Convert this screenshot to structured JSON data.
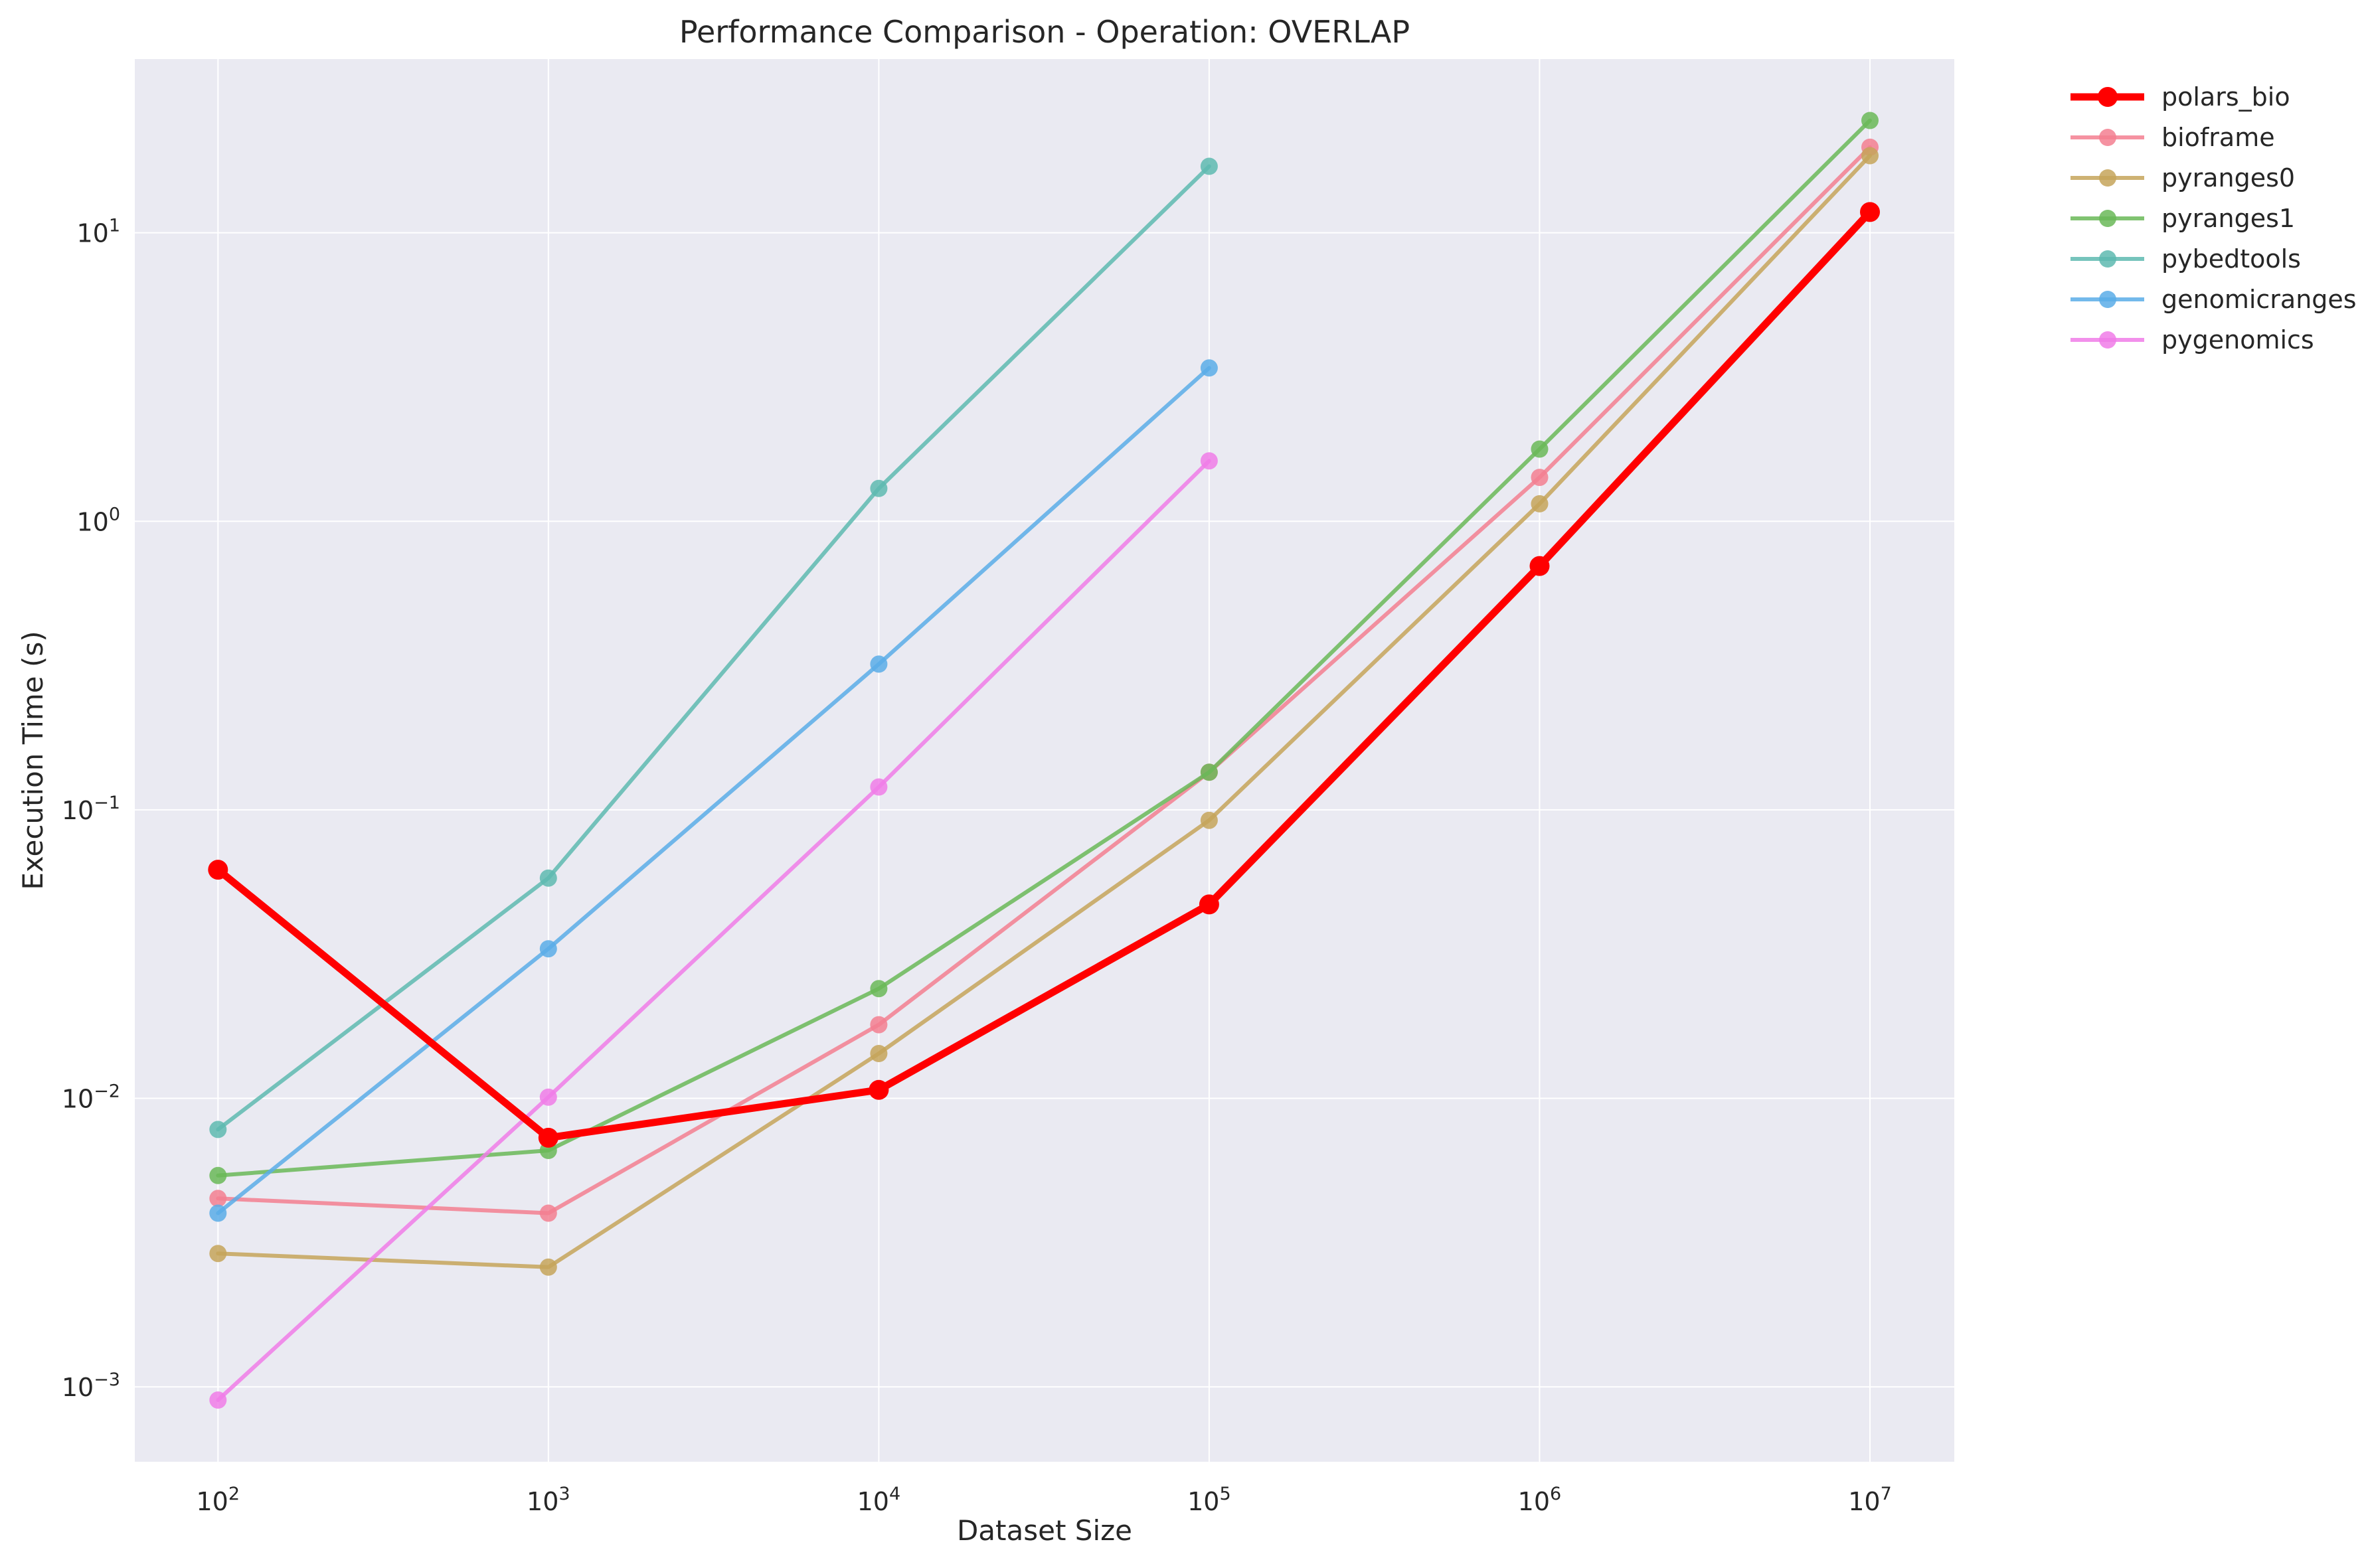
{
  "chart_data": {
    "type": "line",
    "title": "Performance Comparison - Operation: OVERLAP",
    "xlabel": "Dataset Size",
    "ylabel": "Execution Time (s)",
    "x_scale": "log",
    "y_scale": "log",
    "x": [
      100,
      1000,
      10000,
      100000,
      1000000,
      10000000
    ],
    "xlim": [
      56,
      18000000
    ],
    "ylim": [
      0.00055,
      40
    ],
    "x_ticks": [
      {
        "base": "10",
        "exp": "2",
        "value": 100
      },
      {
        "base": "10",
        "exp": "3",
        "value": 1000
      },
      {
        "base": "10",
        "exp": "4",
        "value": 10000
      },
      {
        "base": "10",
        "exp": "5",
        "value": 100000
      },
      {
        "base": "10",
        "exp": "6",
        "value": 1000000
      },
      {
        "base": "10",
        "exp": "7",
        "value": 10000000
      }
    ],
    "y_ticks": [
      {
        "base": "10",
        "exp": "−3",
        "value": 0.001
      },
      {
        "base": "10",
        "exp": "−2",
        "value": 0.01
      },
      {
        "base": "10",
        "exp": "−1",
        "value": 0.1
      },
      {
        "base": "10",
        "exp": "0",
        "value": 1
      },
      {
        "base": "10",
        "exp": "1",
        "value": 10
      }
    ],
    "grid": true,
    "legend_position": "outside-right",
    "background_color": "#EAEAF2",
    "series": [
      {
        "name": "polars_bio",
        "color": "#FF0000",
        "emphasis": true,
        "values": [
          0.062,
          0.0073,
          0.0107,
          0.047,
          0.7,
          11.8
        ]
      },
      {
        "name": "bioframe",
        "color": "#F37F91",
        "values": [
          0.0045,
          0.004,
          0.018,
          0.135,
          1.42,
          19.8
        ]
      },
      {
        "name": "pyranges0",
        "color": "#C5A45A",
        "values": [
          0.0029,
          0.0026,
          0.0143,
          0.092,
          1.15,
          18.5
        ]
      },
      {
        "name": "pyranges1",
        "color": "#6AB958",
        "values": [
          0.0054,
          0.0066,
          0.024,
          0.135,
          1.78,
          24.5
        ]
      },
      {
        "name": "pybedtools",
        "color": "#5EBAB0",
        "values": [
          0.0078,
          0.058,
          1.3,
          17.0,
          null,
          null
        ]
      },
      {
        "name": "genomicranges",
        "color": "#5AADE8",
        "values": [
          0.004,
          0.033,
          0.32,
          3.4,
          null,
          null
        ]
      },
      {
        "name": "pygenomics",
        "color": "#F07CE8",
        "values": [
          0.0009,
          0.0101,
          0.12,
          1.62,
          null,
          null
        ]
      }
    ]
  }
}
